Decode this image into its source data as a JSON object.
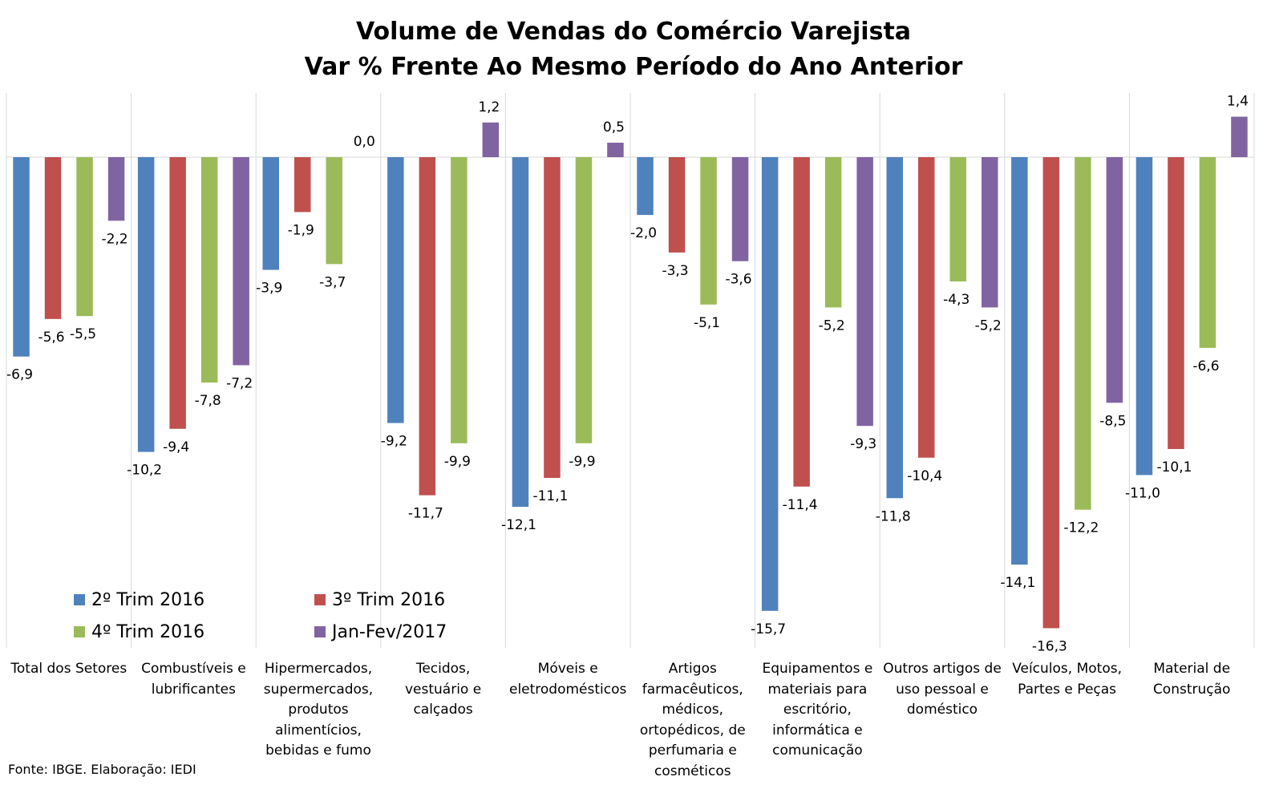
{
  "chart_data": {
    "type": "bar",
    "title": "Volume de Vendas do Comércio Varejista",
    "subtitle": "Var % Frente Ao Mesmo Período do Ano Anterior",
    "categories": [
      "Total dos Setores",
      "Combustíveis e lubrificantes",
      "Hipermercados, supermercados, produtos alimentícios, bebidas e fumo",
      "Tecidos, vestuário e calçados",
      "Móveis e eletrodomésticos",
      "Artigos farmacêuticos, médicos, ortopédicos, de perfumaria e cosméticos",
      "Equipamentos e materiais para escritório, informática e comunicação",
      "Outros artigos de uso pessoal e doméstico",
      "Veículos, Motos, Partes e Peças",
      "Material de Construção"
    ],
    "series": [
      {
        "name": "2º Trim 2016",
        "color": "#4F81BD",
        "values": [
          -6.9,
          -10.2,
          -3.9,
          -9.2,
          -12.1,
          -2.0,
          -15.7,
          -11.8,
          -14.1,
          -11.0
        ],
        "labels": [
          "-6,9",
          "-10,2",
          "-3,9",
          "-9,2",
          "-12,1",
          "-2,0",
          "-15,7",
          "-11,8",
          "-14,1",
          "-11,0"
        ]
      },
      {
        "name": "3º Trim 2016",
        "color": "#C0504D",
        "values": [
          -5.6,
          -9.4,
          -1.9,
          -11.7,
          -11.1,
          -3.3,
          -11.4,
          -10.4,
          -16.3,
          -10.1
        ],
        "labels": [
          "-5,6",
          "-9,4",
          "-1,9",
          "-11,7",
          "-11,1",
          "-3,3",
          "-11,4",
          "-10,4",
          "-16,3",
          "-10,1"
        ]
      },
      {
        "name": "4º Trim 2016",
        "color": "#9BBB59",
        "values": [
          -5.5,
          -7.8,
          -3.7,
          -9.9,
          -9.9,
          -5.1,
          -5.2,
          -4.3,
          -12.2,
          -6.6
        ],
        "labels": [
          "-5,5",
          "-7,8",
          "-3,7",
          "-9,9",
          "-9,9",
          "-5,1",
          "-5,2",
          "-4,3",
          "-12,2",
          "-6,6"
        ]
      },
      {
        "name": "Jan-Fev/2017",
        "color": "#8064A2",
        "values": [
          -2.2,
          -7.2,
          0.0,
          1.2,
          0.5,
          -3.6,
          -9.3,
          -5.2,
          -8.5,
          1.4
        ],
        "labels": [
          "-2,2",
          "-7,2",
          "0,0",
          "1,2",
          "0,5",
          "-3,6",
          "-9,3",
          "-5,2",
          "-8,5",
          "1,4"
        ]
      }
    ],
    "legend_position": "bottom-left-inside",
    "grid": false,
    "source": "Fonte: IBGE. Elaboração: IEDI"
  }
}
